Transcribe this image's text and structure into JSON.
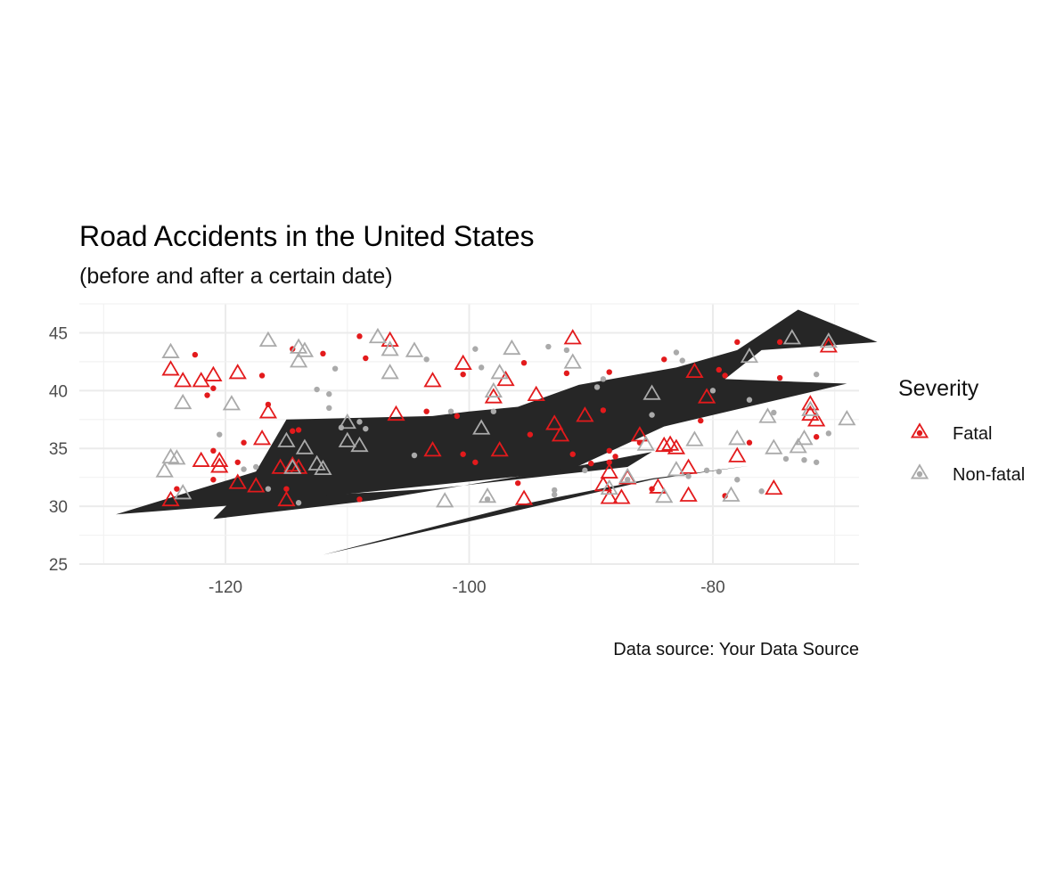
{
  "chart_data": {
    "type": "scatter",
    "title": "Road Accidents in the United States",
    "subtitle": "(before and after a certain date)",
    "caption": "Data source: Your Data Source",
    "xlabel": "",
    "ylabel": "",
    "xlim": [
      -132,
      -68
    ],
    "ylim": [
      25,
      47.5
    ],
    "x_ticks": [
      -120,
      -100,
      -80
    ],
    "y_ticks": [
      25,
      30,
      35,
      40,
      45
    ],
    "grid": true,
    "legend": {
      "title": "Severity",
      "position": "right",
      "entries": [
        {
          "label": "Fatal",
          "color": "#e31a1c"
        },
        {
          "label": "Non-fatal",
          "color": "#aaaaaa"
        }
      ]
    },
    "background_shape": {
      "fill": "#262626",
      "polygons": [
        [
          [
            -129,
            29.3
          ],
          [
            -117.5,
            33
          ],
          [
            -115,
            37.5
          ],
          [
            -103,
            37.8
          ],
          [
            -100,
            38.2
          ],
          [
            -96,
            38.6
          ],
          [
            -91,
            40.5
          ],
          [
            -83,
            42
          ],
          [
            -78,
            43.5
          ],
          [
            -73,
            47
          ],
          [
            -66.5,
            44.2
          ],
          [
            -76,
            43.5
          ],
          [
            -79,
            41
          ],
          [
            -69,
            40.6
          ],
          [
            -84,
            36.9
          ],
          [
            -92,
            33
          ],
          [
            -118,
            30.2
          ]
        ],
        [
          [
            -121,
            28.9
          ],
          [
            -119.5,
            30.5
          ],
          [
            -103,
            31.5
          ],
          [
            -87,
            33.4
          ],
          [
            -85,
            34.7
          ],
          [
            -93.5,
            33
          ],
          [
            -108,
            30.5
          ]
        ],
        [
          [
            -112,
            25.8
          ],
          [
            -85,
            32.3
          ],
          [
            -77,
            33.5
          ],
          [
            -85,
            32.4
          ],
          [
            -96,
            30.1
          ]
        ]
      ]
    },
    "series": [
      {
        "name": "Fatal",
        "color": "#e31a1c",
        "triangles": [
          [
            -124.5,
            30.5
          ],
          [
            -124.5,
            41.8
          ],
          [
            -123.5,
            40.8
          ],
          [
            -122,
            40.8
          ],
          [
            -121,
            41.3
          ],
          [
            -122,
            33.9
          ],
          [
            -120.5,
            33.9
          ],
          [
            -120.5,
            33.4
          ],
          [
            -119,
            41.5
          ],
          [
            -119,
            32
          ],
          [
            -117.5,
            31.7
          ],
          [
            -117,
            35.8
          ],
          [
            -116.5,
            38.1
          ],
          [
            -115.5,
            33.3
          ],
          [
            -115,
            30.5
          ],
          [
            -114.5,
            33.5
          ],
          [
            -114,
            33.3
          ],
          [
            -106.5,
            44.3
          ],
          [
            -106,
            37.9
          ],
          [
            -103,
            40.8
          ],
          [
            -103,
            34.8
          ],
          [
            -100.5,
            42.3
          ],
          [
            -98,
            39.4
          ],
          [
            -97.5,
            34.8
          ],
          [
            -97,
            40.9
          ],
          [
            -95.5,
            30.6
          ],
          [
            -94.5,
            39.6
          ],
          [
            -93,
            37.1
          ],
          [
            -92.5,
            36.1
          ],
          [
            -91.5,
            44.5
          ],
          [
            -90.5,
            37.8
          ],
          [
            -89,
            31.8
          ],
          [
            -88.5,
            32.9
          ],
          [
            -88.5,
            30.7
          ],
          [
            -87.5,
            30.7
          ],
          [
            -87,
            32.4
          ],
          [
            -86,
            36.1
          ],
          [
            -84.5,
            31.6
          ],
          [
            -84,
            35.2
          ],
          [
            -83.5,
            35.3
          ],
          [
            -83,
            35
          ],
          [
            -82,
            33.3
          ],
          [
            -82,
            30.9
          ],
          [
            -81.5,
            41.6
          ],
          [
            -80.5,
            39.4
          ],
          [
            -78,
            34.3
          ],
          [
            -75,
            31.5
          ],
          [
            -72,
            38.8
          ],
          [
            -72,
            37.9
          ],
          [
            -71.5,
            37.4
          ],
          [
            -70.5,
            43.8
          ]
        ],
        "dots": [
          [
            -124,
            31.5
          ],
          [
            -122.5,
            43.1
          ],
          [
            -121.5,
            39.6
          ],
          [
            -121,
            40.2
          ],
          [
            -121,
            34.8
          ],
          [
            -121,
            32.3
          ],
          [
            -119,
            33.8
          ],
          [
            -118.5,
            35.5
          ],
          [
            -117,
            41.3
          ],
          [
            -116.5,
            38.8
          ],
          [
            -115,
            31.5
          ],
          [
            -114.5,
            36.5
          ],
          [
            -114,
            36.6
          ],
          [
            -114.5,
            43.6
          ],
          [
            -112,
            43.2
          ],
          [
            -109,
            44.7
          ],
          [
            -108.5,
            42.8
          ],
          [
            -109,
            30.6
          ],
          [
            -103.5,
            38.2
          ],
          [
            -101,
            37.8
          ],
          [
            -100.5,
            41.4
          ],
          [
            -100.5,
            34.5
          ],
          [
            -99.5,
            33.8
          ],
          [
            -95.5,
            42.4
          ],
          [
            -96,
            32
          ],
          [
            -95,
            36.2
          ],
          [
            -92,
            41.5
          ],
          [
            -91.5,
            34.5
          ],
          [
            -90,
            33.7
          ],
          [
            -89,
            38.3
          ],
          [
            -88.5,
            41.6
          ],
          [
            -88.5,
            34.8
          ],
          [
            -88.5,
            33.8
          ],
          [
            -88,
            34.3
          ],
          [
            -86,
            35.5
          ],
          [
            -85,
            31.5
          ],
          [
            -84,
            42.7
          ],
          [
            -81,
            37.4
          ],
          [
            -79.5,
            41.8
          ],
          [
            -79,
            41.3
          ],
          [
            -79,
            30.9
          ],
          [
            -78,
            44.2
          ],
          [
            -77,
            35.5
          ],
          [
            -74.5,
            41.1
          ],
          [
            -74.5,
            44.2
          ],
          [
            -71.5,
            36
          ]
        ]
      },
      {
        "name": "Non-fatal",
        "color": "#aaaaaa",
        "triangles": [
          [
            -124.5,
            43.3
          ],
          [
            -124.5,
            34.2
          ],
          [
            -125,
            33
          ],
          [
            -124,
            34.1
          ],
          [
            -123.5,
            38.9
          ],
          [
            -123.5,
            31.1
          ],
          [
            -119.5,
            38.8
          ],
          [
            -116.5,
            44.3
          ],
          [
            -115,
            35.6
          ],
          [
            -114.5,
            33.3
          ],
          [
            -114,
            42.5
          ],
          [
            -114,
            43.7
          ],
          [
            -113.5,
            43.4
          ],
          [
            -113.5,
            35
          ],
          [
            -112.5,
            33.6
          ],
          [
            -112,
            33.2
          ],
          [
            -110,
            37.2
          ],
          [
            -110,
            35.6
          ],
          [
            -109,
            35.2
          ],
          [
            -107.5,
            44.6
          ],
          [
            -106.5,
            43.5
          ],
          [
            -106.5,
            41.5
          ],
          [
            -104.5,
            43.4
          ],
          [
            -102,
            30.4
          ],
          [
            -99,
            36.7
          ],
          [
            -98.5,
            30.8
          ],
          [
            -98,
            39.9
          ],
          [
            -97.5,
            41.5
          ],
          [
            -96.5,
            43.6
          ],
          [
            -91.5,
            42.4
          ],
          [
            -88.5,
            31.5
          ],
          [
            -87,
            32.5
          ],
          [
            -85.5,
            35.3
          ],
          [
            -85,
            39.7
          ],
          [
            -84,
            30.8
          ],
          [
            -83,
            33.1
          ],
          [
            -81.5,
            35.7
          ],
          [
            -78.5,
            30.9
          ],
          [
            -78,
            35.8
          ],
          [
            -77,
            42.9
          ],
          [
            -75.5,
            37.7
          ],
          [
            -75,
            35
          ],
          [
            -73.5,
            44.5
          ],
          [
            -73,
            35.1
          ],
          [
            -72.5,
            35.8
          ],
          [
            -72,
            38.3
          ],
          [
            -70.5,
            44.2
          ],
          [
            -69,
            37.5
          ]
        ],
        "dots": [
          [
            -120.5,
            36.2
          ],
          [
            -118.5,
            33.2
          ],
          [
            -117.5,
            33.4
          ],
          [
            -116.5,
            31.5
          ],
          [
            -114,
            30.3
          ],
          [
            -112.5,
            40.1
          ],
          [
            -111.5,
            39.7
          ],
          [
            -111.5,
            38.5
          ],
          [
            -110.5,
            36.8
          ],
          [
            -111,
            41.9
          ],
          [
            -109,
            37.3
          ],
          [
            -108.5,
            36.7
          ],
          [
            -104.5,
            34.4
          ],
          [
            -103.5,
            42.7
          ],
          [
            -101.5,
            38.2
          ],
          [
            -99.5,
            43.6
          ],
          [
            -99,
            42
          ],
          [
            -98.5,
            30.6
          ],
          [
            -98,
            38.2
          ],
          [
            -93.5,
            43.8
          ],
          [
            -93,
            31.4
          ],
          [
            -93,
            31
          ],
          [
            -92,
            43.5
          ],
          [
            -90.5,
            33.1
          ],
          [
            -89.5,
            40.3
          ],
          [
            -89,
            41
          ],
          [
            -87,
            32.3
          ],
          [
            -85,
            37.9
          ],
          [
            -83,
            43.3
          ],
          [
            -82.5,
            42.6
          ],
          [
            -82,
            32.6
          ],
          [
            -80,
            40
          ],
          [
            -80.5,
            33.1
          ],
          [
            -79.5,
            33
          ],
          [
            -78,
            32.3
          ],
          [
            -77,
            39.2
          ],
          [
            -76,
            31.3
          ],
          [
            -75,
            38.1
          ],
          [
            -74,
            34.1
          ],
          [
            -72.5,
            34
          ],
          [
            -71.5,
            33.8
          ],
          [
            -71.5,
            41.4
          ],
          [
            -70.5,
            36.3
          ]
        ]
      }
    ]
  }
}
